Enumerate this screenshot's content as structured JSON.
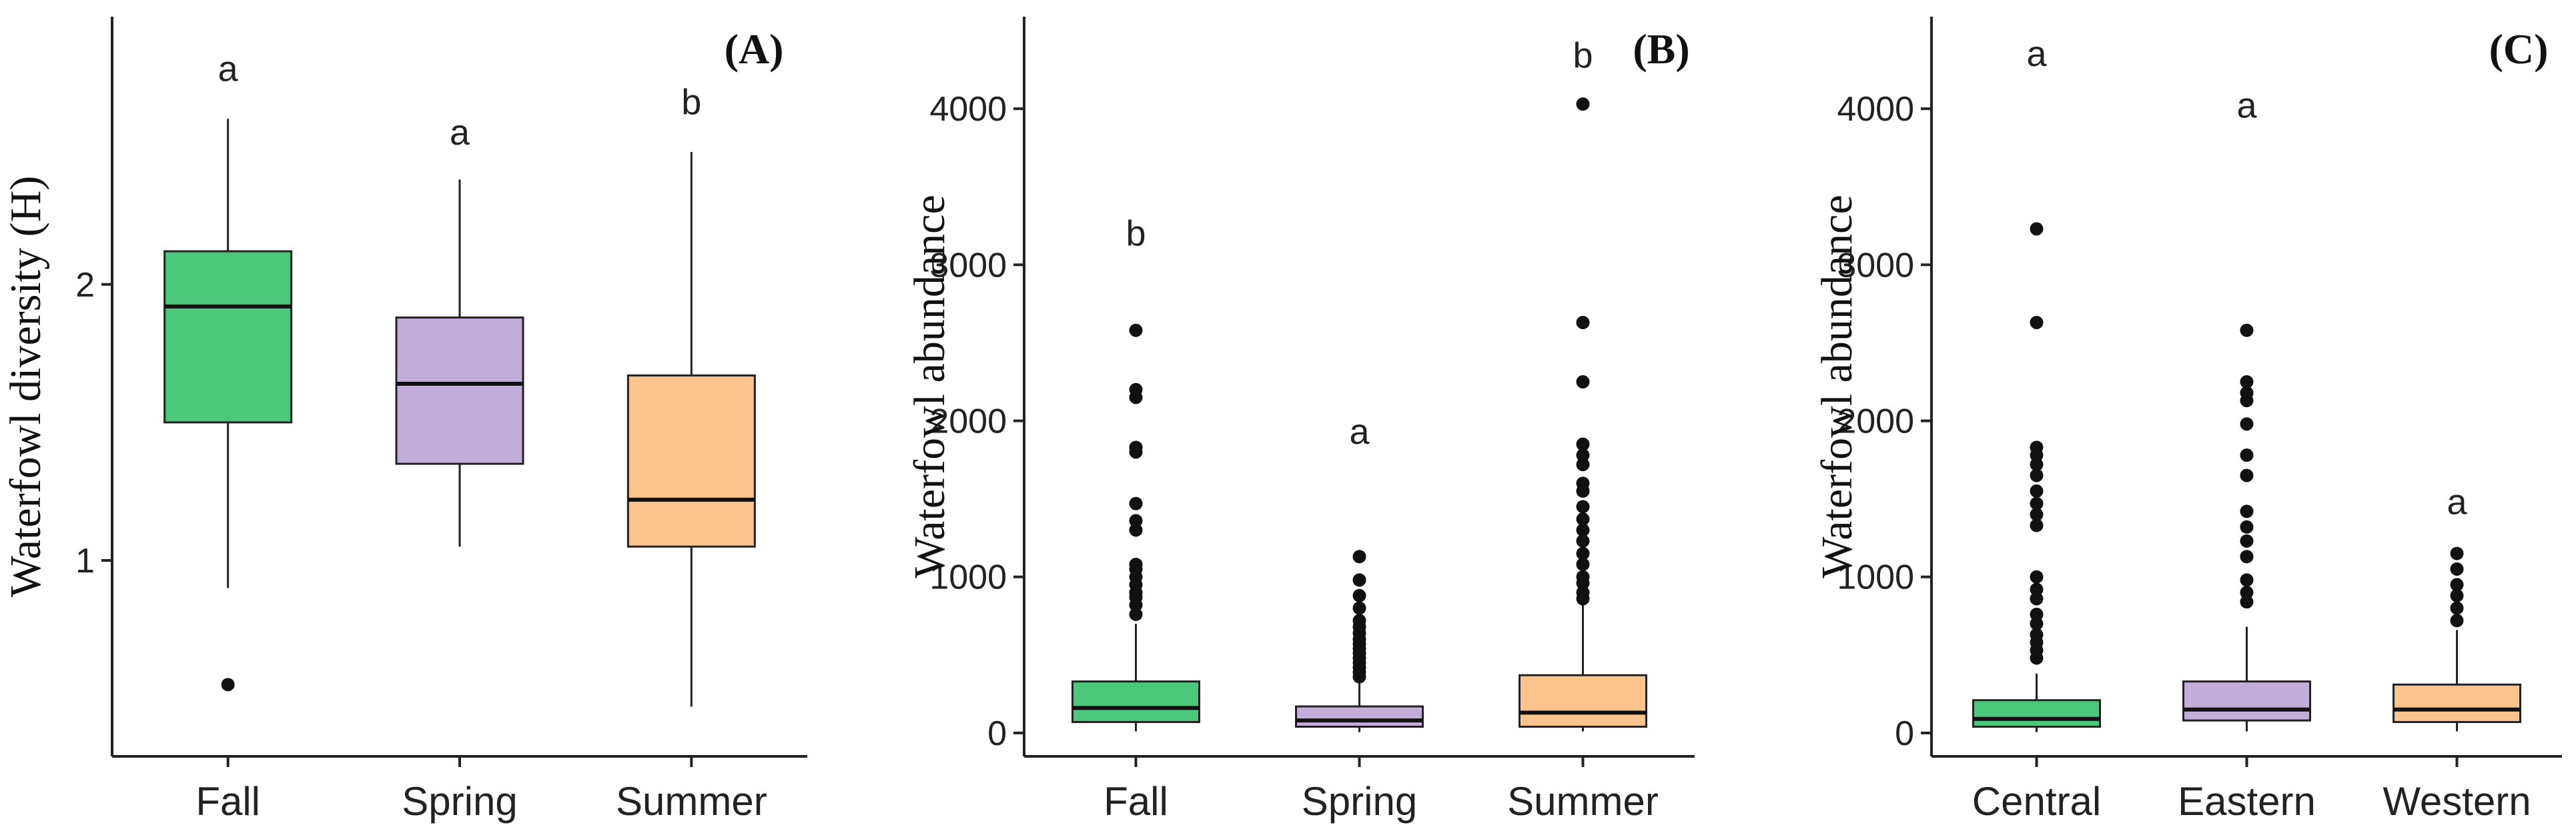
{
  "colors": {
    "green": "#4cc77b",
    "purple": "#c3aed9",
    "orange": "#fdc38c",
    "outline": "#222222"
  },
  "chart_data": [
    {
      "type": "boxplot",
      "panel_label": "(A)",
      "ylabel": "Waterfowl diversity (H)",
      "xlabel": "",
      "ylim": [
        0.29,
        2.97
      ],
      "yticks": [
        1,
        2
      ],
      "grid": false,
      "categories": [
        "Fall",
        "Spring",
        "Summer"
      ],
      "boxes": [
        {
          "name": "Fall",
          "color": "green",
          "whisker_low": 0.9,
          "q1": 1.5,
          "median": 1.92,
          "q3": 2.12,
          "whisker_high": 2.6,
          "outliers": [
            0.55
          ],
          "letter": "a",
          "letter_y": 2.78
        },
        {
          "name": "Spring",
          "color": "purple",
          "whisker_low": 1.05,
          "q1": 1.35,
          "median": 1.64,
          "q3": 1.88,
          "whisker_high": 2.38,
          "outliers": [],
          "letter": "a",
          "letter_y": 2.55
        },
        {
          "name": "Summer",
          "color": "orange",
          "whisker_low": 0.47,
          "q1": 1.05,
          "median": 1.22,
          "q3": 1.67,
          "whisker_high": 2.48,
          "outliers": [],
          "letter": "b",
          "letter_y": 2.66
        }
      ]
    },
    {
      "type": "boxplot",
      "panel_label": "(B)",
      "ylabel": "Waterfowl abundance",
      "xlabel": "",
      "ylim": [
        -150,
        4590
      ],
      "yticks": [
        0,
        1000,
        2000,
        3000,
        4000
      ],
      "grid": false,
      "categories": [
        "Fall",
        "Spring",
        "Summer"
      ],
      "boxes": [
        {
          "name": "Fall",
          "color": "green",
          "whisker_low": 10,
          "q1": 70,
          "median": 160,
          "q3": 330,
          "whisker_high": 700,
          "outliers": [
            760,
            820,
            870,
            900,
            950,
            1000,
            1050,
            1080,
            1300,
            1360,
            1470,
            1800,
            1830,
            2150,
            2200,
            2580
          ],
          "letter": "b",
          "letter_y": 3200
        },
        {
          "name": "Spring",
          "color": "purple",
          "whisker_low": 5,
          "q1": 40,
          "median": 80,
          "q3": 170,
          "whisker_high": 350,
          "outliers": [
            360,
            390,
            420,
            450,
            480,
            510,
            540,
            570,
            600,
            640,
            680,
            720,
            800,
            880,
            980,
            1130
          ],
          "letter": "a",
          "letter_y": 1930
        },
        {
          "name": "Summer",
          "color": "orange",
          "whisker_low": 10,
          "q1": 40,
          "median": 130,
          "q3": 370,
          "whisker_high": 820,
          "outliers": [
            860,
            900,
            960,
            1000,
            1080,
            1150,
            1230,
            1300,
            1370,
            1450,
            1550,
            1600,
            1720,
            1780,
            1850,
            2250,
            2630,
            4030
          ],
          "letter": "b",
          "letter_y": 4340
        }
      ]
    },
    {
      "type": "boxplot",
      "panel_label": "(C)",
      "ylabel": "Waterfowl abundance",
      "xlabel": "",
      "ylim": [
        -150,
        4590
      ],
      "yticks": [
        0,
        1000,
        2000,
        3000,
        4000
      ],
      "grid": false,
      "categories": [
        "Central",
        "Eastern",
        "Western"
      ],
      "boxes": [
        {
          "name": "Central",
          "color": "green",
          "whisker_low": 5,
          "q1": 40,
          "median": 90,
          "q3": 210,
          "whisker_high": 380,
          "outliers": [
            480,
            530,
            580,
            630,
            700,
            760,
            860,
            920,
            1000,
            1330,
            1400,
            1470,
            1550,
            1650,
            1720,
            1780,
            1830,
            2630,
            3230
          ],
          "letter": "a",
          "letter_y": 4350
        },
        {
          "name": "Eastern",
          "color": "purple",
          "whisker_low": 10,
          "q1": 80,
          "median": 150,
          "q3": 330,
          "whisker_high": 680,
          "outliers": [
            840,
            900,
            980,
            1130,
            1230,
            1320,
            1420,
            1650,
            1780,
            1980,
            2130,
            2180,
            2250,
            2580
          ],
          "letter": "a",
          "letter_y": 4020
        },
        {
          "name": "Western",
          "color": "orange",
          "whisker_low": 10,
          "q1": 70,
          "median": 150,
          "q3": 310,
          "whisker_high": 660,
          "outliers": [
            720,
            800,
            880,
            950,
            1050,
            1150
          ],
          "letter": "a",
          "letter_y": 1480
        }
      ]
    }
  ]
}
